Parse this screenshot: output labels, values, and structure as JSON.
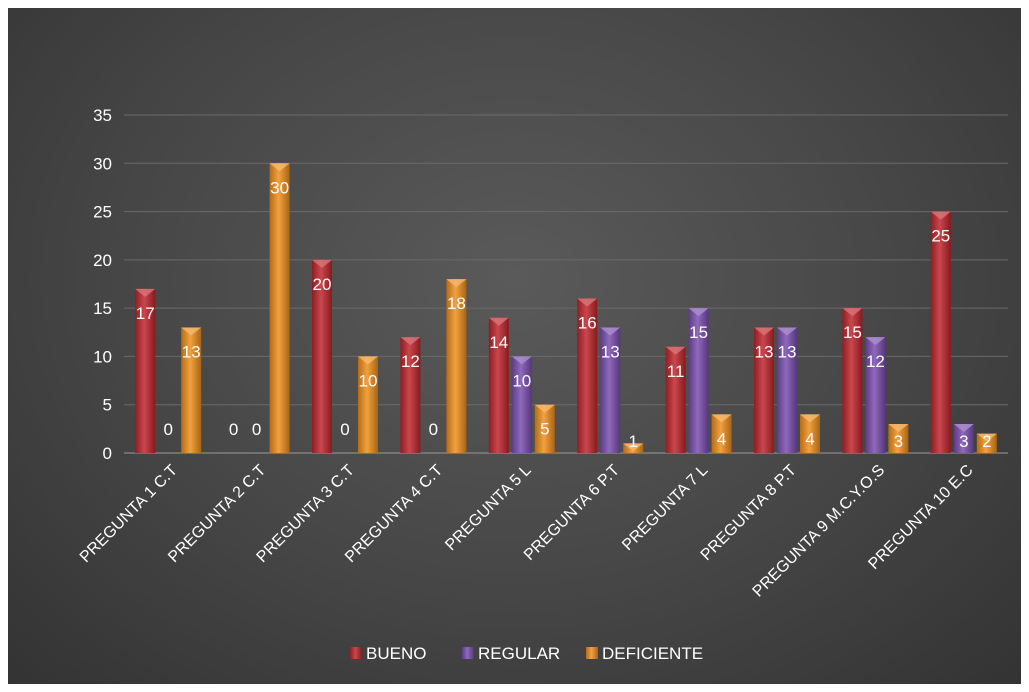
{
  "chart_data": {
    "type": "bar",
    "title": "",
    "xlabel": "",
    "ylabel": "",
    "ylim": [
      0,
      35
    ],
    "yticks": [
      "0",
      "5",
      "10",
      "15",
      "20",
      "25",
      "30",
      "35"
    ],
    "grid": true,
    "legend_position": "bottom",
    "categories": [
      "PREGUNTA 1  C.T",
      "PREGUNTA 2  C.T",
      "PREGUNTA 3  C.T",
      "PREGUNTA 4  C.T",
      "PREGUNTA 5  L",
      "PREGUNTA 6  P.T",
      "PREGUNTA 7   L",
      "PREGUNTA 8   P.T",
      "PREGUNTA 9  M.C.Y.O.S",
      "PREGUNTA 10  E.C"
    ],
    "series": [
      {
        "name": "BUENO",
        "color": "#c0272d",
        "values": [
          17,
          0,
          20,
          12,
          14,
          16,
          11,
          13,
          15,
          25
        ]
      },
      {
        "name": "REGULAR",
        "color": "#7b4fb0",
        "values": [
          0,
          0,
          0,
          0,
          10,
          13,
          15,
          13,
          12,
          3
        ]
      },
      {
        "name": "DEFICIENTE",
        "color": "#f0901e",
        "values": [
          13,
          30,
          10,
          18,
          5,
          1,
          4,
          4,
          3,
          2
        ]
      }
    ]
  }
}
